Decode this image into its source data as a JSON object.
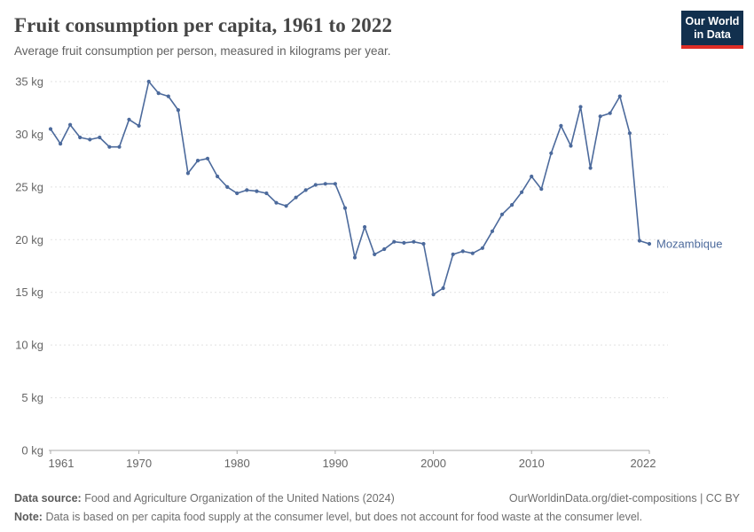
{
  "header": {
    "title": "Fruit consumption per capita, 1961 to 2022",
    "subtitle": "Average fruit consumption per person, measured in kilograms per year.",
    "logo": {
      "line1": "Our World",
      "line2": "in Data",
      "bg_color": "#12304E",
      "accent_color": "#DE2D26"
    }
  },
  "chart_data": {
    "type": "line",
    "title": "Fruit consumption per capita, 1961 to 2022",
    "xlabel": "",
    "ylabel": "",
    "xlim": [
      1961,
      2022
    ],
    "ylim": [
      0,
      35
    ],
    "grid": "horizontal dashed",
    "legend_position": "end-of-line label",
    "x_ticks": [
      1961,
      1970,
      1980,
      1990,
      2000,
      2010,
      2022
    ],
    "y_ticks": [
      {
        "value": 0,
        "label": "0 kg"
      },
      {
        "value": 5,
        "label": "5 kg"
      },
      {
        "value": 10,
        "label": "10 kg"
      },
      {
        "value": 15,
        "label": "15 kg"
      },
      {
        "value": 20,
        "label": "20 kg"
      },
      {
        "value": 25,
        "label": "25 kg"
      },
      {
        "value": 30,
        "label": "30 kg"
      },
      {
        "value": 35,
        "label": "35 kg"
      }
    ],
    "series": [
      {
        "name": "Mozambique",
        "color": "#4C6A9C",
        "x": [
          1961,
          1962,
          1963,
          1964,
          1965,
          1966,
          1967,
          1968,
          1969,
          1970,
          1971,
          1972,
          1973,
          1974,
          1975,
          1976,
          1977,
          1978,
          1979,
          1980,
          1981,
          1982,
          1983,
          1984,
          1985,
          1986,
          1987,
          1988,
          1989,
          1990,
          1991,
          1992,
          1993,
          1994,
          1995,
          1996,
          1997,
          1998,
          1999,
          2000,
          2001,
          2002,
          2003,
          2004,
          2005,
          2006,
          2007,
          2008,
          2009,
          2010,
          2011,
          2012,
          2013,
          2014,
          2015,
          2016,
          2017,
          2018,
          2019,
          2020,
          2021,
          2022
        ],
        "values": [
          30.5,
          29.1,
          30.9,
          29.7,
          29.5,
          29.7,
          28.8,
          28.8,
          31.4,
          30.8,
          35.0,
          33.9,
          33.6,
          32.3,
          26.3,
          27.5,
          27.7,
          26.0,
          25.0,
          24.4,
          24.7,
          24.6,
          24.4,
          23.5,
          23.2,
          24.0,
          24.7,
          25.2,
          25.3,
          25.3,
          23.0,
          18.3,
          21.2,
          18.6,
          19.1,
          19.8,
          19.7,
          19.8,
          19.6,
          14.8,
          15.4,
          18.6,
          18.9,
          18.7,
          19.2,
          20.8,
          22.4,
          23.3,
          24.5,
          26.0,
          24.8,
          28.2,
          30.8,
          28.9,
          32.6,
          26.8,
          31.7,
          32.0,
          33.6,
          30.1,
          19.9,
          19.6
        ]
      }
    ],
    "end_label": "Mozambique",
    "colors": {
      "line": "#4C6A9C",
      "grid": "#e2e2e2",
      "axis": "#a8a8a8",
      "tick_text": "#666666"
    }
  },
  "footer": {
    "source_label": "Data source:",
    "source_text": "Food and Agriculture Organization of the United Nations (2024)",
    "url": "OurWorldinData.org/diet-compositions",
    "license": " | CC BY",
    "note_label": "Note:",
    "note_text": "Data is based on per capita food supply at the consumer level, but does not account for food waste at the consumer level."
  }
}
